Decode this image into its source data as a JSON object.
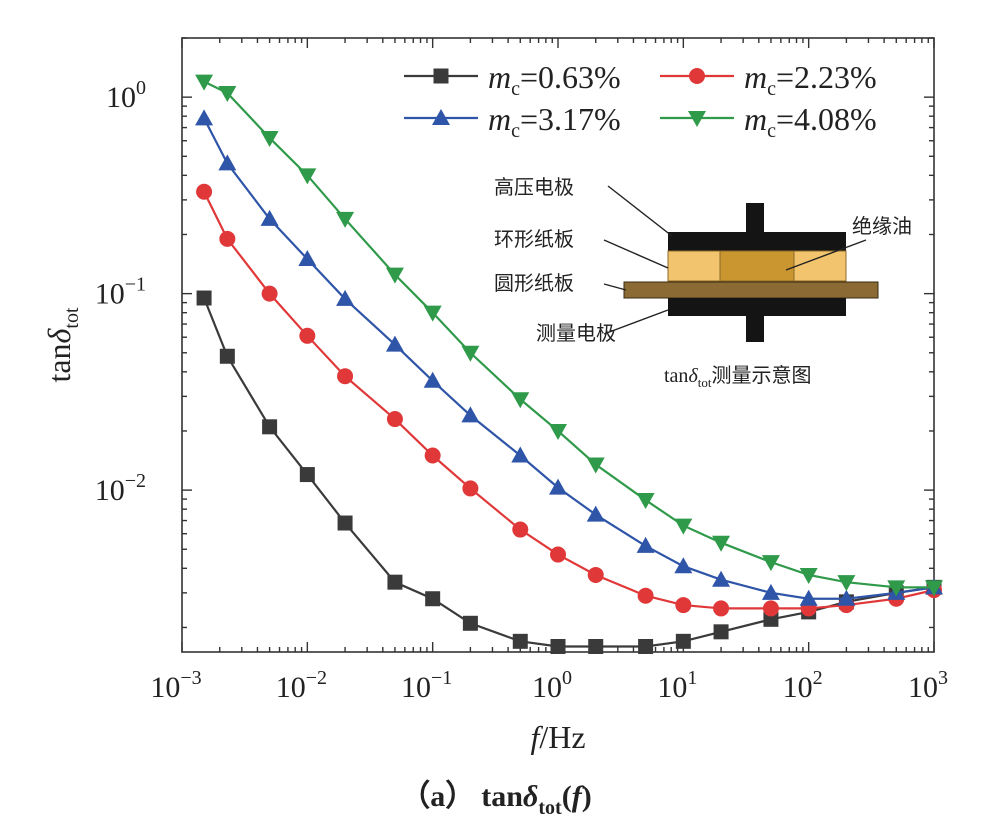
{
  "chart_data": {
    "type": "line",
    "xscale": "log",
    "yscale": "log",
    "xlim": [
      0.001,
      1000
    ],
    "ylim": [
      0.0015,
      2
    ],
    "xlabel": {
      "main": "f",
      "suffix": "/Hz"
    },
    "ylabel": {
      "prefix": "tan",
      "symbol": "δ",
      "sub": "tot"
    },
    "x_ticks": [
      {
        "base": "10",
        "exp": "−3"
      },
      {
        "base": "10",
        "exp": "−2"
      },
      {
        "base": "10",
        "exp": "−1"
      },
      {
        "base": "10",
        "exp": "0"
      },
      {
        "base": "10",
        "exp": "1"
      },
      {
        "base": "10",
        "exp": "2"
      },
      {
        "base": "10",
        "exp": "3"
      }
    ],
    "y_ticks": [
      {
        "base": "10",
        "exp": "−2",
        "value": 0.01
      },
      {
        "base": "10",
        "exp": "−1",
        "value": 0.1
      },
      {
        "base": "10",
        "exp": "0",
        "value": 1
      }
    ],
    "x": [
      0.0015,
      0.0023,
      0.005,
      0.01,
      0.02,
      0.05,
      0.1,
      0.2,
      0.5,
      1,
      2,
      5,
      10,
      20,
      50,
      100,
      200,
      500,
      1000
    ],
    "series": [
      {
        "name": "0.63%",
        "label_var": "m",
        "label_sub": "c",
        "color": "#3a3a3a",
        "marker": "square",
        "values": [
          0.095,
          0.048,
          0.021,
          0.012,
          0.0068,
          0.0034,
          0.0028,
          0.0021,
          0.0017,
          0.0016,
          0.0016,
          0.0016,
          0.0017,
          0.0019,
          0.0022,
          0.0024,
          0.0027,
          0.003,
          0.0032
        ]
      },
      {
        "name": "2.23%",
        "label_var": "m",
        "label_sub": "c",
        "color": "#e03838",
        "marker": "circle",
        "values": [
          0.33,
          0.19,
          0.1,
          0.061,
          0.038,
          0.023,
          0.015,
          0.0102,
          0.0063,
          0.0047,
          0.0037,
          0.0029,
          0.0026,
          0.0025,
          0.0025,
          0.0025,
          0.0026,
          0.0028,
          0.0031
        ]
      },
      {
        "name": "3.17%",
        "label_var": "m",
        "label_sub": "c",
        "color": "#2f55a8",
        "marker": "triangle-up",
        "values": [
          0.78,
          0.46,
          0.24,
          0.15,
          0.094,
          0.055,
          0.036,
          0.024,
          0.015,
          0.0103,
          0.0075,
          0.0052,
          0.0041,
          0.0035,
          0.003,
          0.0028,
          0.0028,
          0.003,
          0.0032
        ]
      },
      {
        "name": "4.08%",
        "label_var": "m",
        "label_sub": "c",
        "color": "#2f9a4a",
        "marker": "triangle-down",
        "values": [
          1.2,
          1.05,
          0.62,
          0.4,
          0.24,
          0.125,
          0.08,
          0.05,
          0.029,
          0.02,
          0.0135,
          0.0089,
          0.0066,
          0.0054,
          0.0043,
          0.0037,
          0.0034,
          0.0032,
          0.0032
        ]
      }
    ],
    "legend_position": "top-right",
    "inset": {
      "labels": {
        "high_voltage": "高压电极",
        "ring_board": "环形纸板",
        "round_board": "圆形纸板",
        "measure": "测量电极",
        "oil": "绝缘油"
      },
      "caption": {
        "prefix": "tan",
        "symbol": "δ",
        "sub": "tot",
        "suffix": "测量示意图"
      }
    },
    "caption": {
      "label": "（a）",
      "prefix": "tan",
      "symbol": "δ",
      "sub": "tot",
      "suffix_open": "(",
      "var": "f",
      "suffix_close": ")"
    }
  }
}
